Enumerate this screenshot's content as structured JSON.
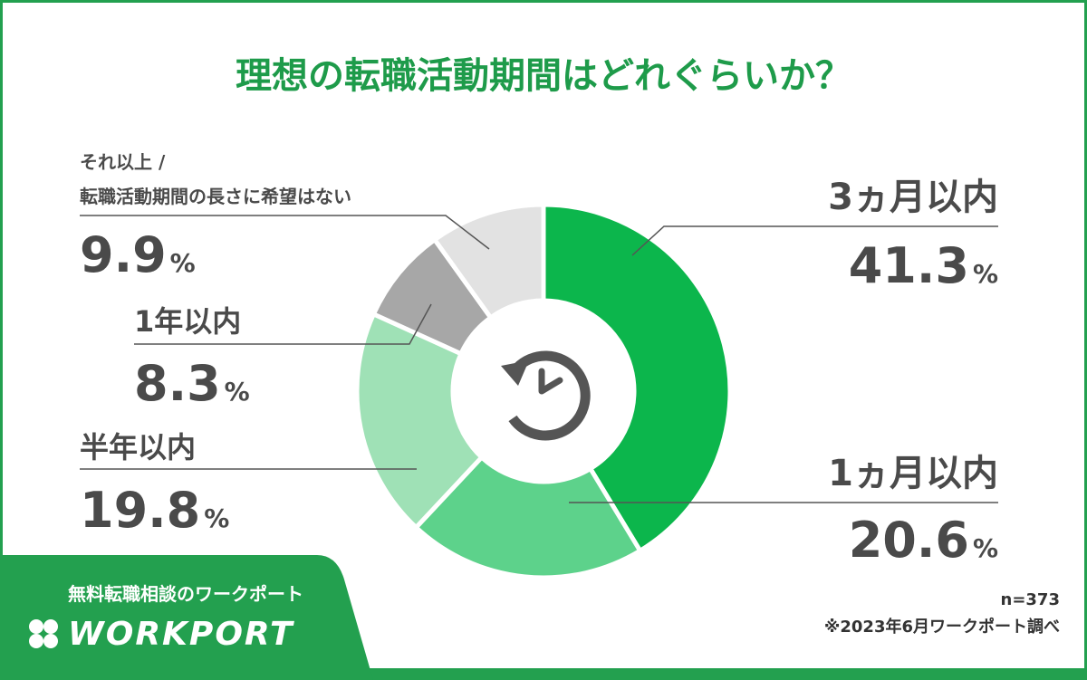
{
  "chart_data": {
    "type": "donut",
    "title": "理想の転職活動期間はどれぐらいか？",
    "categories": [
      "3ヵ月以内",
      "1ヵ月以内",
      "半年以内",
      "1年以内",
      "それ以上 /\n転職活動期間の長さに希望はない"
    ],
    "values": [
      41.3,
      20.6,
      19.8,
      8.3,
      9.9
    ],
    "value_labels": [
      "41.3%",
      "20.6%",
      "19.8%",
      "8.3%",
      "9.9%"
    ],
    "colors": [
      "#0cb64c",
      "#5dd28b",
      "#9fe1b6",
      "#a7a7a7",
      "#e2e2e2"
    ],
    "note": "n=373",
    "source": "※2023年6月ワークポート調べ"
  },
  "brand": {
    "tagline": "無料転職相談のワークポート",
    "logo": "WORKPORT"
  }
}
